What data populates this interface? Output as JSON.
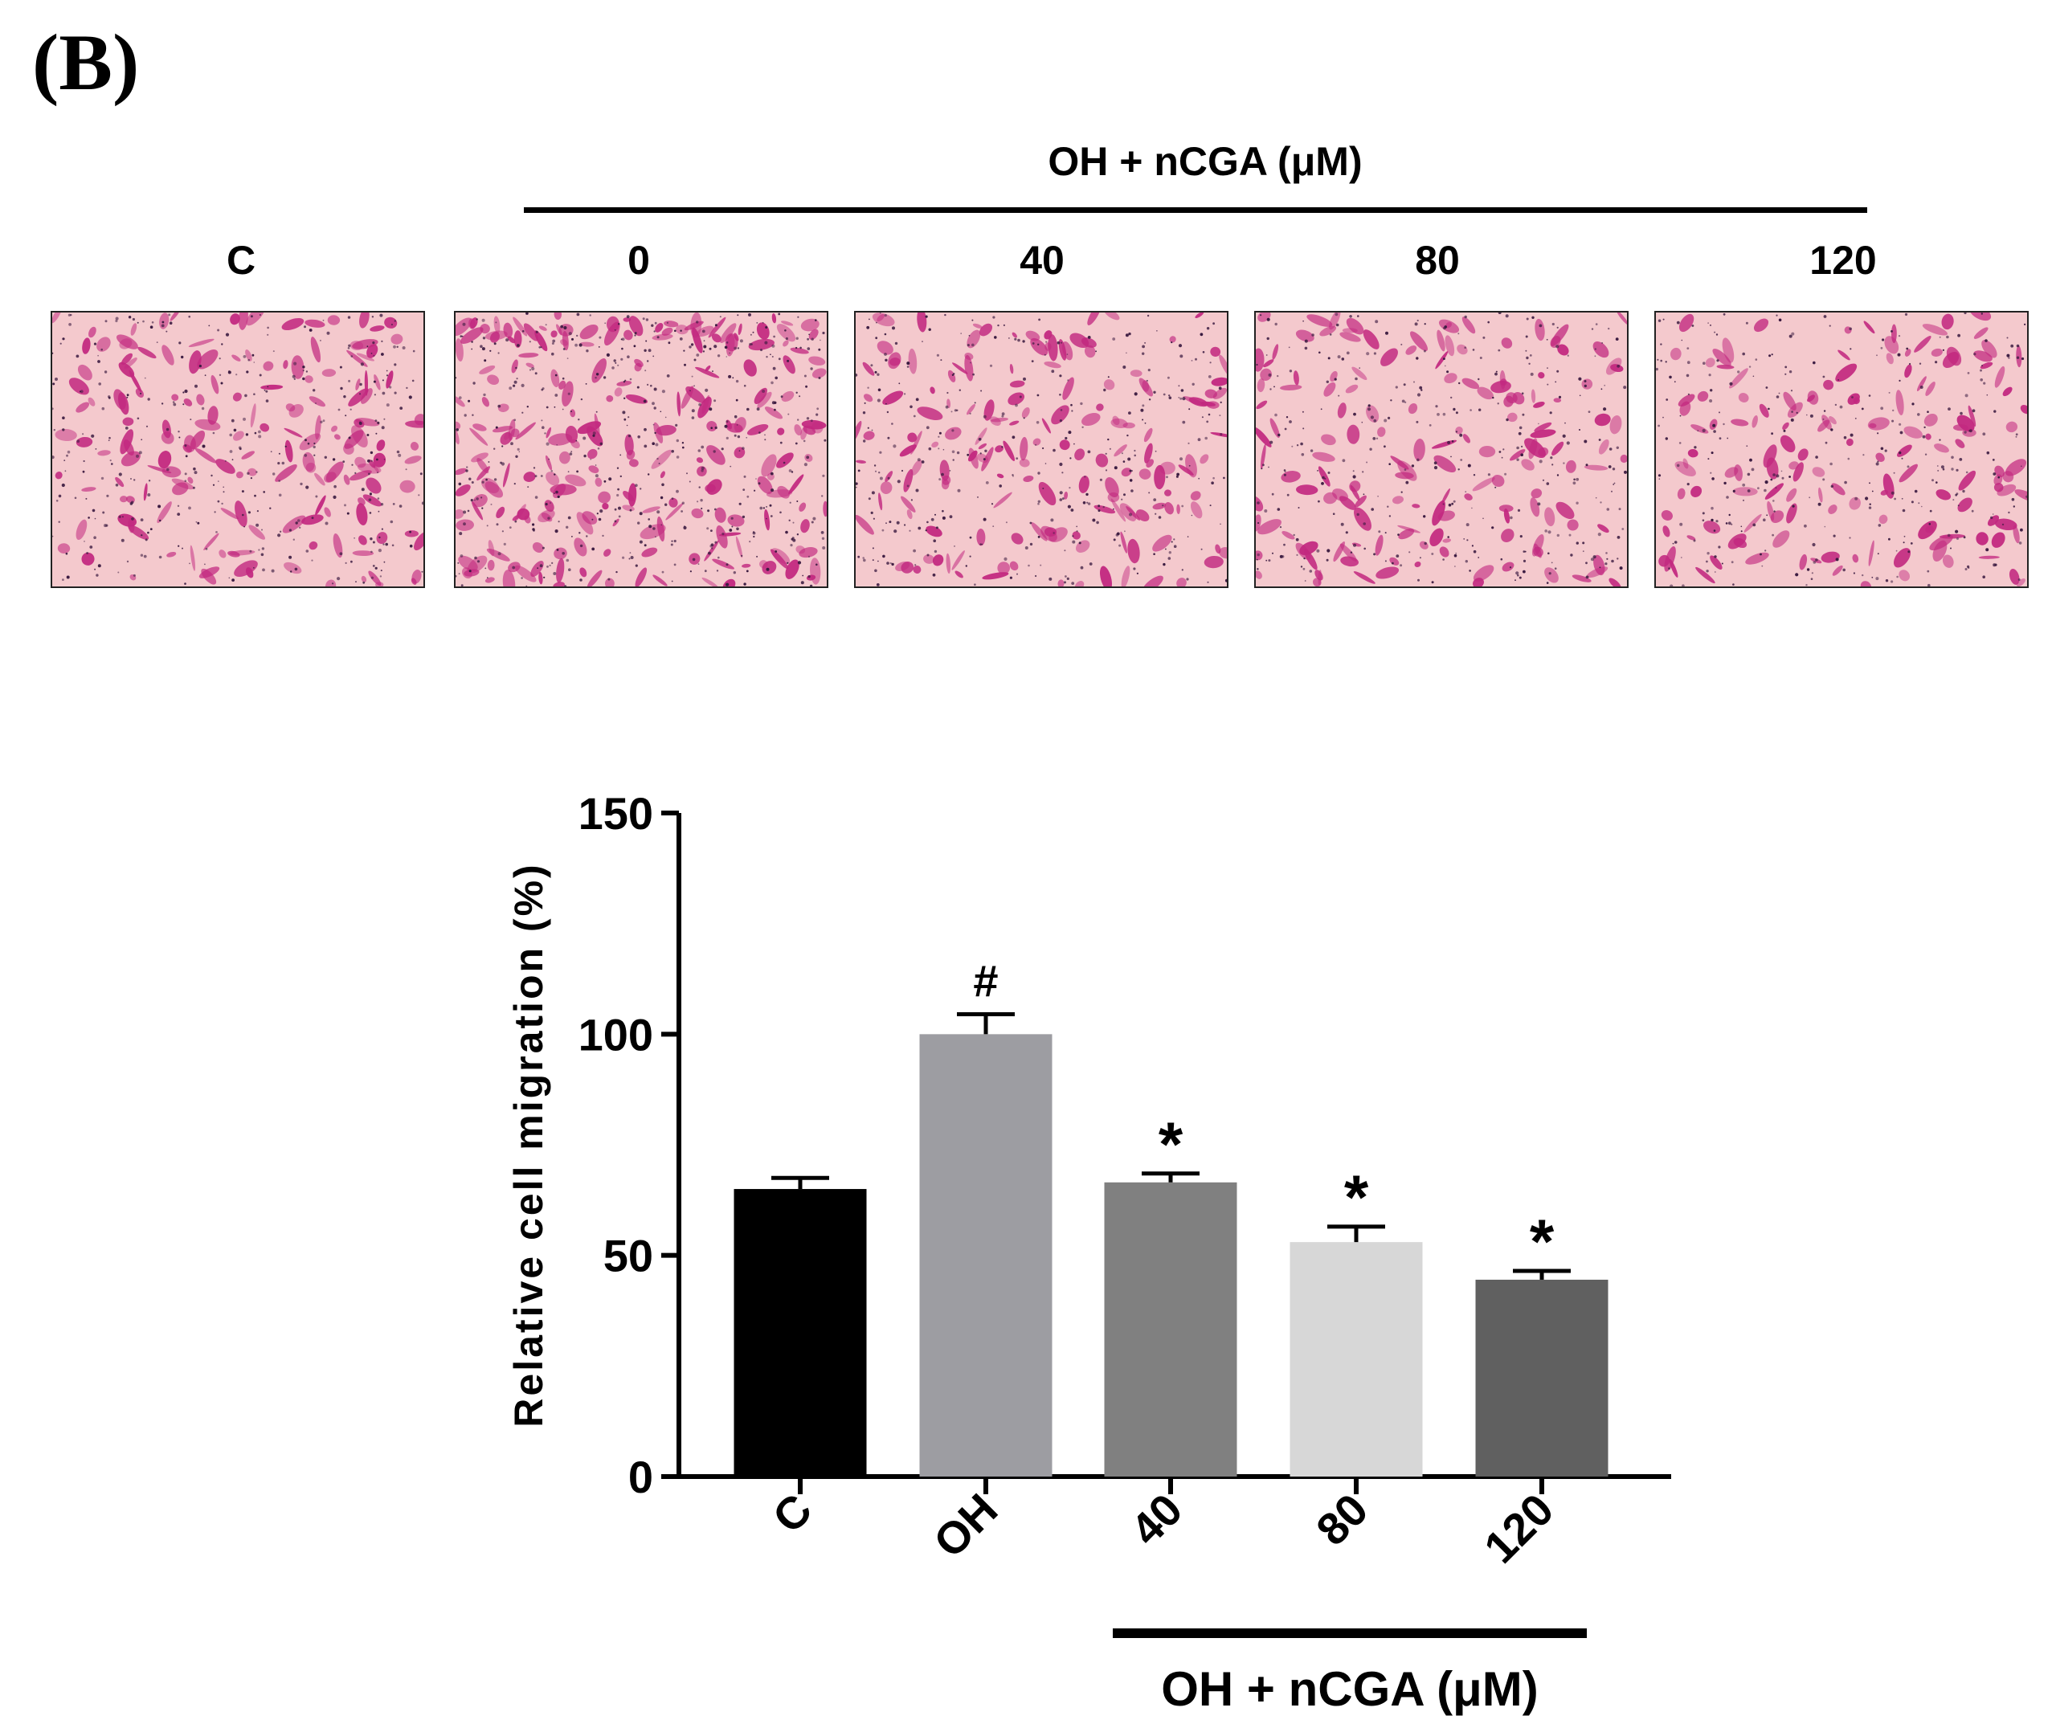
{
  "panel_label": "(B)",
  "micrographs": {
    "group_title": "OH + nCGA (μM)",
    "labels": [
      "C",
      "0",
      "40",
      "80",
      "120"
    ]
  },
  "colors": {
    "stain_background": "#f4c9cd",
    "stain_cells": "#c2287f",
    "stain_dark": "#3a1a40"
  },
  "chart_data": {
    "type": "bar",
    "categories": [
      "C",
      "OH",
      "40",
      "80",
      "120"
    ],
    "values": [
      65,
      100,
      66.5,
      53,
      44.5
    ],
    "errors": [
      2.5,
      4.5,
      2.0,
      3.5,
      2.0
    ],
    "significance": [
      "",
      "#",
      "*",
      "*",
      "*"
    ],
    "bar_colors": [
      "#000000",
      "#9d9da2",
      "#808080",
      "#d7d7d7",
      "#606060"
    ],
    "ylabel": "Relative cell migration (%)",
    "ylim": [
      0,
      150
    ],
    "yticks": [
      0,
      50,
      100,
      150
    ],
    "group_label": "OH + nCGA (μM)",
    "group_categories": [
      "40",
      "80",
      "120"
    ],
    "grid": false
  }
}
